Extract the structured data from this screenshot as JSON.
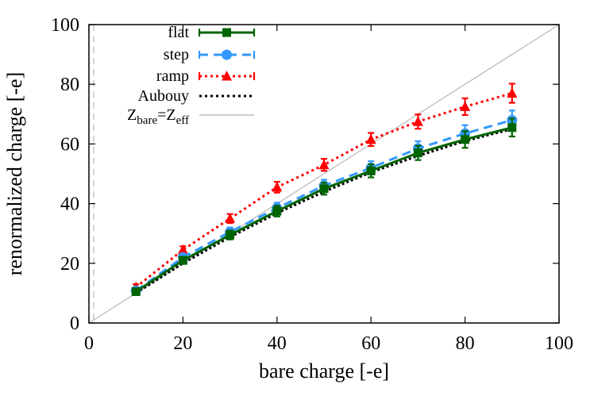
{
  "chart_data": {
    "type": "line",
    "xlabel": "bare charge [-e]",
    "ylabel": "renormalized charge [-e]",
    "xlim": [
      0,
      100
    ],
    "ylim": [
      0,
      100
    ],
    "x_ticks": [
      "0",
      "20",
      "40",
      "60",
      "80",
      "100"
    ],
    "y_ticks": [
      "0",
      "20",
      "40",
      "60",
      "80",
      "100"
    ],
    "grid": false,
    "legend_position": "top-left",
    "x": [
      10,
      20,
      30,
      40,
      50,
      60,
      70,
      80,
      90
    ],
    "series": [
      {
        "name": "flat",
        "color": "#006400",
        "style": "solid",
        "marker": "square",
        "values": [
          10.5,
          21.0,
          29.5,
          37.5,
          45.0,
          51.0,
          57.0,
          61.5,
          65.5
        ],
        "errors": [
          1.0,
          1.2,
          1.5,
          1.8,
          2.0,
          2.2,
          2.4,
          2.8,
          3.0
        ]
      },
      {
        "name": "step",
        "color": "#3399ff",
        "style": "dashed",
        "marker": "circle",
        "values": [
          10.8,
          22.0,
          30.5,
          38.5,
          46.0,
          52.0,
          58.5,
          63.5,
          68.0
        ],
        "errors": [
          1.0,
          1.2,
          1.5,
          1.8,
          2.0,
          2.2,
          2.4,
          2.8,
          3.2
        ]
      },
      {
        "name": "ramp",
        "color": "#ff0000",
        "style": "dotted",
        "marker": "triangle",
        "values": [
          12.0,
          24.5,
          35.0,
          45.5,
          53.0,
          61.5,
          67.5,
          72.5,
          77.0
        ],
        "errors": [
          1.0,
          1.2,
          1.5,
          1.8,
          2.0,
          2.2,
          2.4,
          2.8,
          3.2
        ]
      },
      {
        "name": "Aubouy",
        "color": "#000000",
        "style": "dotted",
        "marker": "none",
        "values": [
          10.0,
          20.0,
          28.8,
          36.8,
          44.0,
          50.5,
          56.0,
          61.0,
          65.0
        ]
      },
      {
        "name_parts": [
          "Z",
          "bare",
          "=Z",
          "eff"
        ],
        "color": "#bbbbbb",
        "style": "solid",
        "marker": "none",
        "diagonal": true
      }
    ],
    "vertical_reference": {
      "x": 1,
      "color": "#bbbbbb",
      "style": "dashed"
    }
  }
}
